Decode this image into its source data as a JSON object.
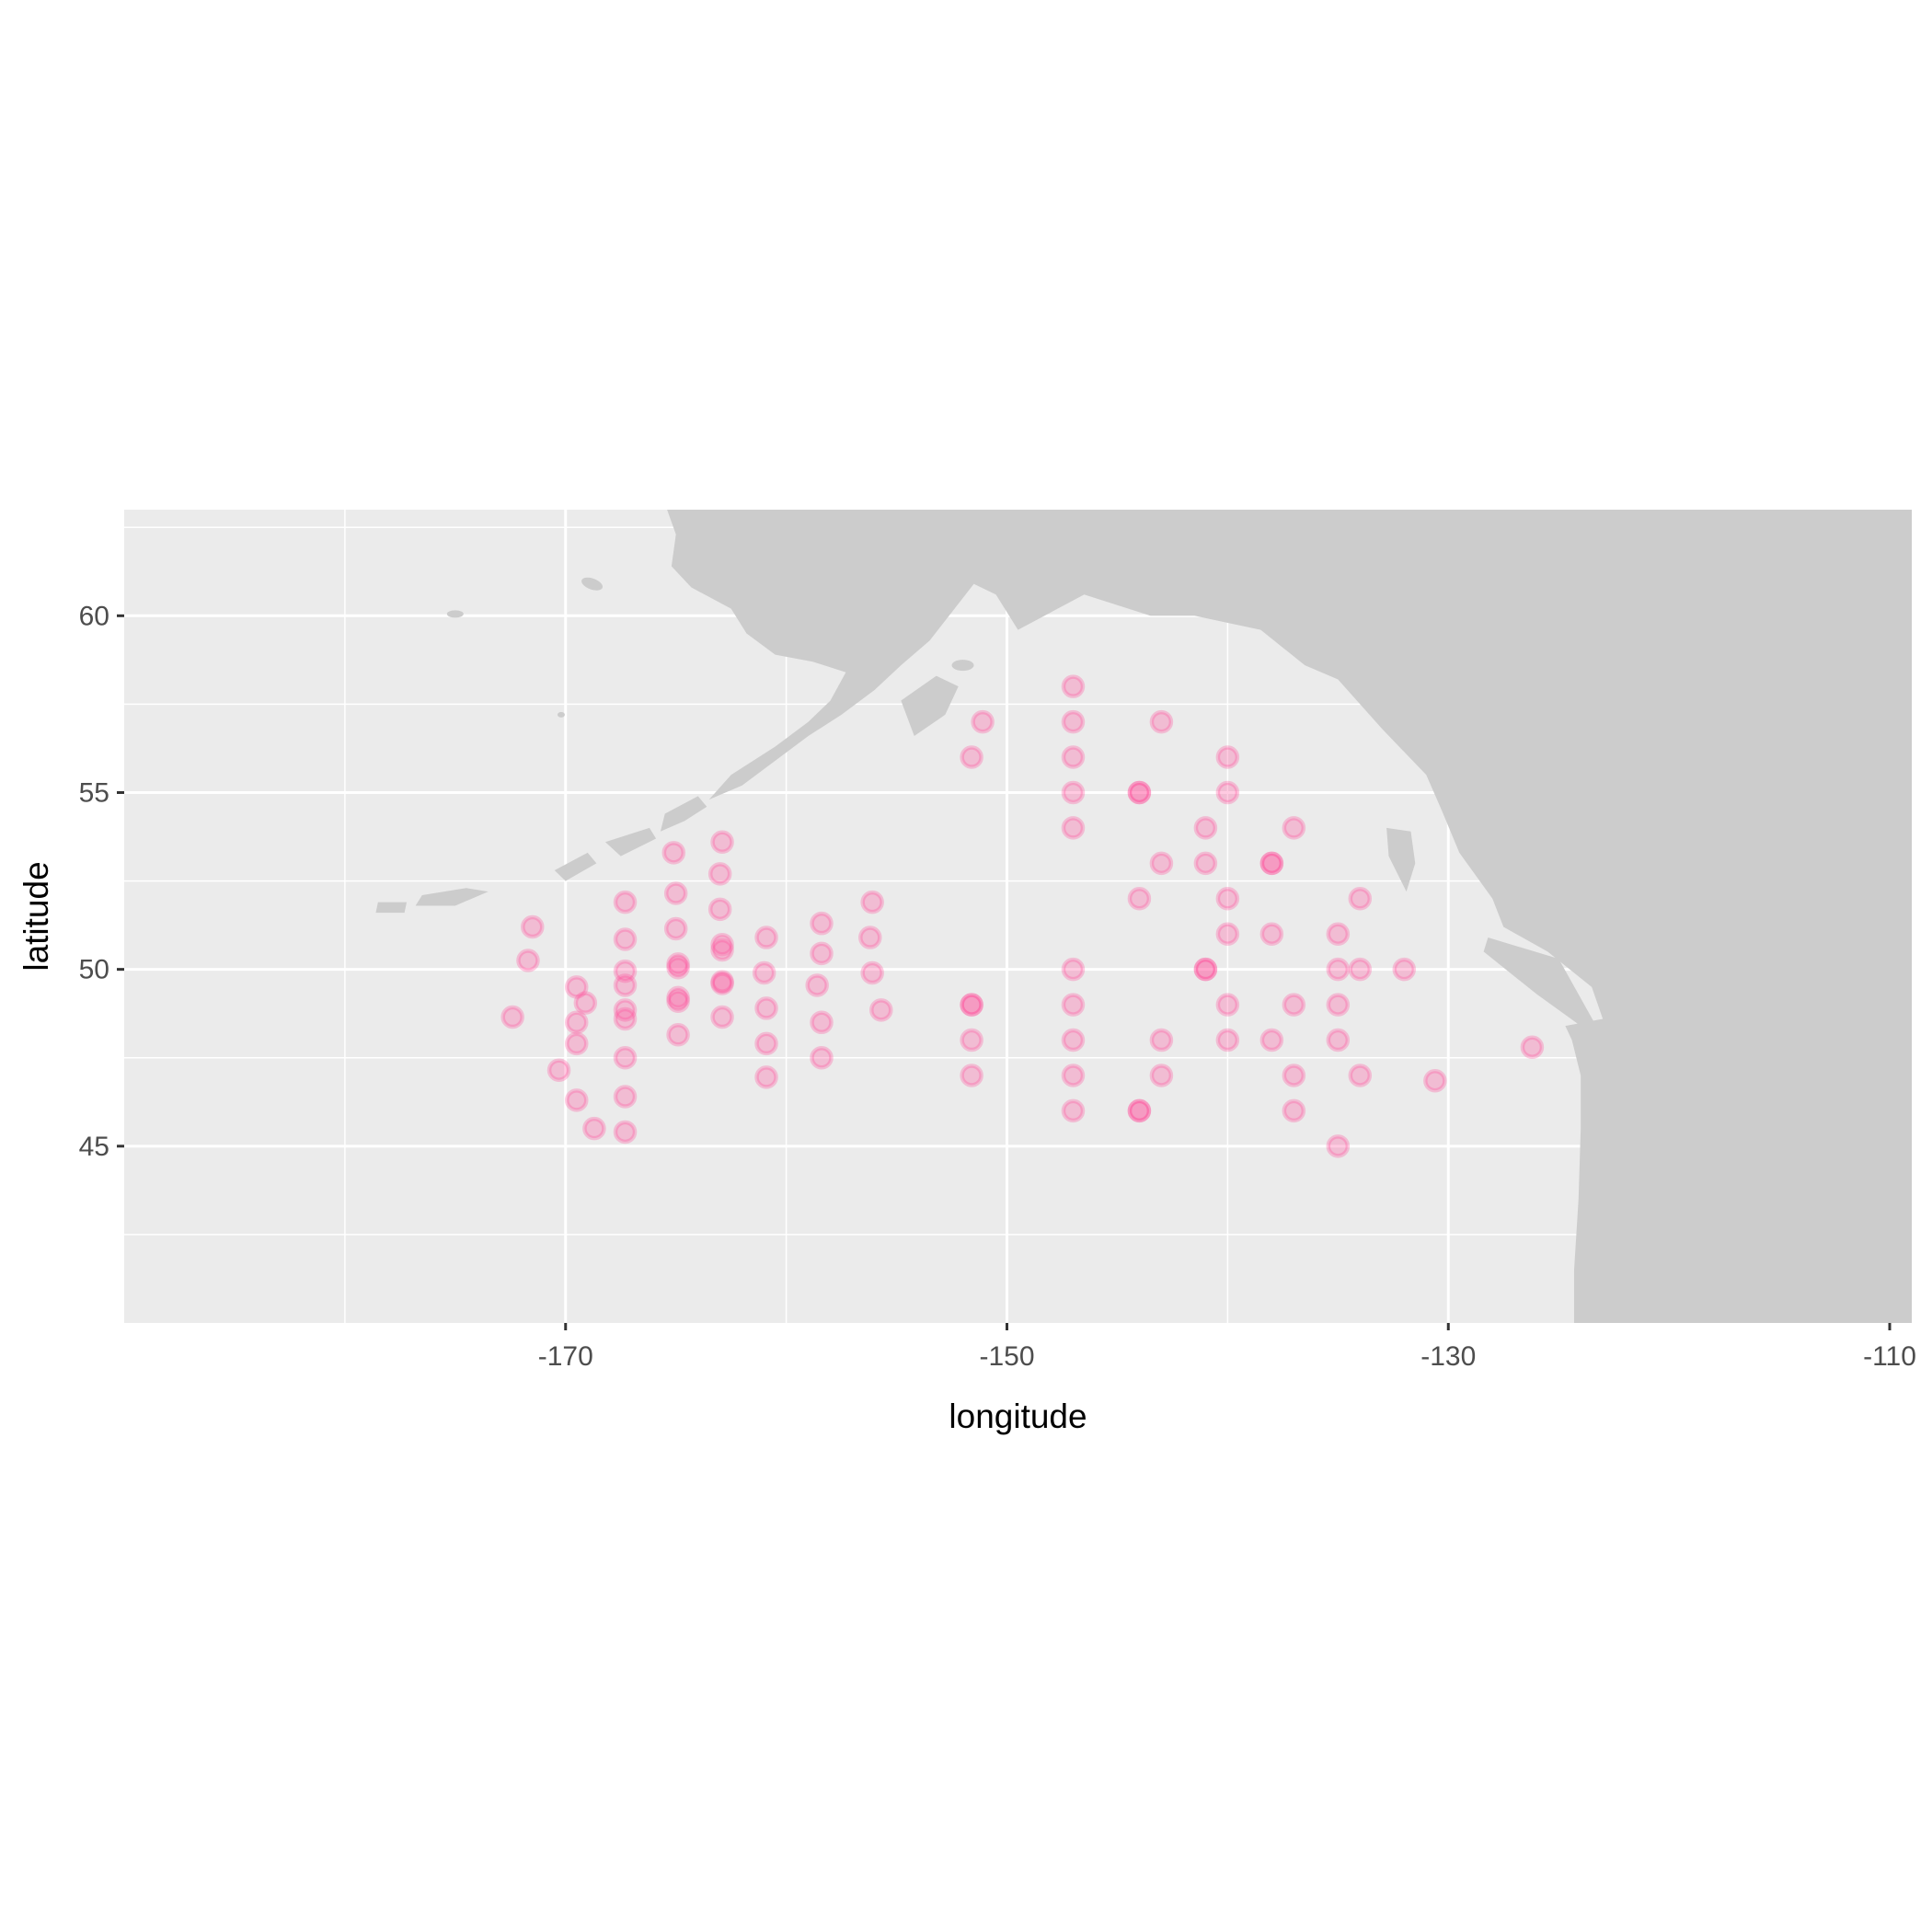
{
  "colors": {
    "panel_background": "#ebebeb",
    "gridline": "#ffffff",
    "land": "#cccccc",
    "point": "#ff4f9a",
    "tick_text": "#4d4d4d",
    "axis_title": "#000000"
  },
  "chart_data": {
    "type": "scatter",
    "title": "",
    "xlabel": "longitude",
    "ylabel": "latitude",
    "xlim": [
      -190,
      -109
    ],
    "ylim": [
      40,
      63
    ],
    "x_ticks": [
      -170,
      -150,
      -130,
      -110
    ],
    "x_tick_labels": [
      "-170",
      "-150",
      "-130",
      "-110"
    ],
    "y_ticks": [
      45,
      50,
      55,
      60
    ],
    "y_tick_labels": [
      "45",
      "50",
      "55",
      "60"
    ],
    "grid": true,
    "legend": "none",
    "basemap": "North Pacific coastline (land shaded grey)",
    "points": [
      [
        -172.4,
        48.65
      ],
      [
        -171.7,
        50.25
      ],
      [
        -171.5,
        51.2
      ],
      [
        -170.3,
        47.15
      ],
      [
        -169.5,
        46.3
      ],
      [
        -169.5,
        47.9
      ],
      [
        -169.5,
        48.5
      ],
      [
        -169.5,
        49.5
      ],
      [
        -169.1,
        49.05
      ],
      [
        -168.7,
        45.5
      ],
      [
        -167.3,
        45.4
      ],
      [
        -167.3,
        46.4
      ],
      [
        -167.3,
        47.5
      ],
      [
        -167.3,
        48.6
      ],
      [
        -167.3,
        48.85
      ],
      [
        -167.3,
        49.55
      ],
      [
        -167.3,
        49.95
      ],
      [
        -167.3,
        50.85
      ],
      [
        -167.3,
        51.9
      ],
      [
        -165.1,
        53.3
      ],
      [
        -165.0,
        52.15
      ],
      [
        -165.0,
        51.15
      ],
      [
        -164.9,
        50.15
      ],
      [
        -164.9,
        50.05
      ],
      [
        -164.9,
        49.2
      ],
      [
        -164.9,
        49.1
      ],
      [
        -164.9,
        48.15
      ],
      [
        -162.9,
        53.6
      ],
      [
        -163.0,
        52.7
      ],
      [
        -163.0,
        51.7
      ],
      [
        -162.9,
        50.7
      ],
      [
        -162.9,
        50.55
      ],
      [
        -162.9,
        49.65
      ],
      [
        -162.9,
        49.6
      ],
      [
        -162.9,
        48.65
      ],
      [
        -160.9,
        50.9
      ],
      [
        -161.0,
        49.9
      ],
      [
        -160.9,
        48.9
      ],
      [
        -160.9,
        47.9
      ],
      [
        -160.9,
        46.95
      ],
      [
        -158.4,
        51.3
      ],
      [
        -158.4,
        50.45
      ],
      [
        -158.6,
        49.55
      ],
      [
        -158.4,
        48.5
      ],
      [
        -158.4,
        47.5
      ],
      [
        -156.1,
        51.9
      ],
      [
        -156.2,
        50.9
      ],
      [
        -156.1,
        49.9
      ],
      [
        -155.7,
        48.85
      ],
      [
        -151.1,
        57.0
      ],
      [
        -151.6,
        56.0
      ],
      [
        -151.6,
        49.0
      ],
      [
        -151.6,
        49.0
      ],
      [
        -151.6,
        48.0
      ],
      [
        -151.6,
        47.0
      ],
      [
        -147.0,
        58.0
      ],
      [
        -147.0,
        57.0
      ],
      [
        -147.0,
        56.0
      ],
      [
        -147.0,
        55.0
      ],
      [
        -147.0,
        54.0
      ],
      [
        -147.0,
        50.0
      ],
      [
        -147.0,
        49.0
      ],
      [
        -147.0,
        48.0
      ],
      [
        -147.0,
        47.0
      ],
      [
        -147.0,
        46.0
      ],
      [
        -144.0,
        55.0
      ],
      [
        -144.0,
        55.0
      ],
      [
        -144.0,
        52.0
      ],
      [
        -144.0,
        46.0
      ],
      [
        -144.0,
        46.0
      ],
      [
        -143.0,
        57.0
      ],
      [
        -143.0,
        53.0
      ],
      [
        -143.0,
        48.0
      ],
      [
        -143.0,
        47.0
      ],
      [
        -141.0,
        54.0
      ],
      [
        -141.0,
        53.0
      ],
      [
        -141.0,
        50.0
      ],
      [
        -141.0,
        50.0
      ],
      [
        -140.0,
        56.0
      ],
      [
        -140.0,
        55.0
      ],
      [
        -140.0,
        52.0
      ],
      [
        -140.0,
        51.0
      ],
      [
        -140.0,
        49.0
      ],
      [
        -140.0,
        48.0
      ],
      [
        -138.0,
        53.0
      ],
      [
        -138.0,
        53.0
      ],
      [
        -138.0,
        51.0
      ],
      [
        -138.0,
        48.0
      ],
      [
        -137.0,
        54.0
      ],
      [
        -137.0,
        49.0
      ],
      [
        -137.0,
        47.0
      ],
      [
        -137.0,
        46.0
      ],
      [
        -135.0,
        51.0
      ],
      [
        -135.0,
        50.0
      ],
      [
        -135.0,
        49.0
      ],
      [
        -135.0,
        48.0
      ],
      [
        -135.0,
        45.0
      ],
      [
        -134.0,
        52.0
      ],
      [
        -134.0,
        50.0
      ],
      [
        -134.0,
        47.0
      ],
      [
        -132.0,
        50.0
      ],
      [
        -130.6,
        46.85
      ],
      [
        -126.2,
        47.8
      ]
    ]
  }
}
